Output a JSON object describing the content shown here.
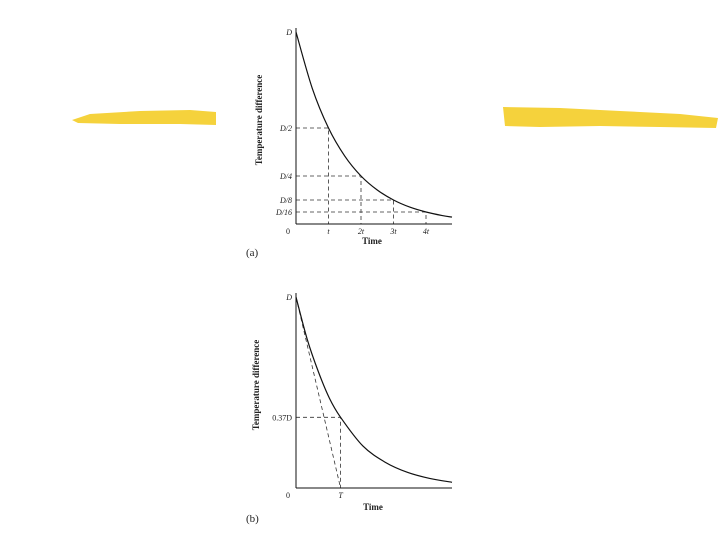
{
  "decor": {
    "accent_color": "#f5d23c"
  },
  "chart_data": [
    {
      "type": "line",
      "panel_label": "(a)",
      "title": "",
      "xlabel": "Time",
      "ylabel": "Temperature difference",
      "x_ticks": [
        {
          "value": 0,
          "label": "0"
        },
        {
          "value": 1,
          "label": "t"
        },
        {
          "value": 2,
          "label": "2t"
        },
        {
          "value": 3,
          "label": "3t"
        },
        {
          "value": 4,
          "label": "4t"
        }
      ],
      "y_ticks": [
        {
          "value": 1,
          "label": "D"
        },
        {
          "value": 0.5,
          "label": "D/2"
        },
        {
          "value": 0.25,
          "label": "D/4"
        },
        {
          "value": 0.125,
          "label": "D/8"
        },
        {
          "value": 0.0625,
          "label": "D/16"
        }
      ],
      "series": [
        {
          "x": [
            0,
            0.5,
            1,
            1.5,
            2,
            2.5,
            3,
            3.5,
            4,
            4.5,
            4.8
          ],
          "y": [
            1,
            0.707,
            0.5,
            0.354,
            0.25,
            0.177,
            0.125,
            0.088,
            0.0625,
            0.044,
            0.036
          ]
        }
      ],
      "xlim": [
        0,
        4.8
      ],
      "ylim": [
        0,
        1.0
      ]
    },
    {
      "type": "line",
      "panel_label": "(b)",
      "title": "",
      "xlabel": "Time",
      "ylabel": "Temperature difference",
      "x_ticks": [
        {
          "value": 0,
          "label": "0"
        },
        {
          "value": 1,
          "label": "T"
        }
      ],
      "y_ticks": [
        {
          "value": 1,
          "label": "D"
        },
        {
          "value": 0.37,
          "label": "0.37D"
        }
      ],
      "series": [
        {
          "x": [
            0,
            0.25,
            0.5,
            0.75,
            1,
            1.5,
            2,
            2.5,
            3,
            3.5
          ],
          "y": [
            1,
            0.78,
            0.61,
            0.47,
            0.37,
            0.22,
            0.135,
            0.082,
            0.05,
            0.03
          ]
        }
      ],
      "tangent": {
        "x": [
          0,
          1
        ],
        "y": [
          1,
          0
        ]
      },
      "xlim": [
        0,
        3.5
      ],
      "ylim": [
        0,
        1.0
      ]
    }
  ]
}
